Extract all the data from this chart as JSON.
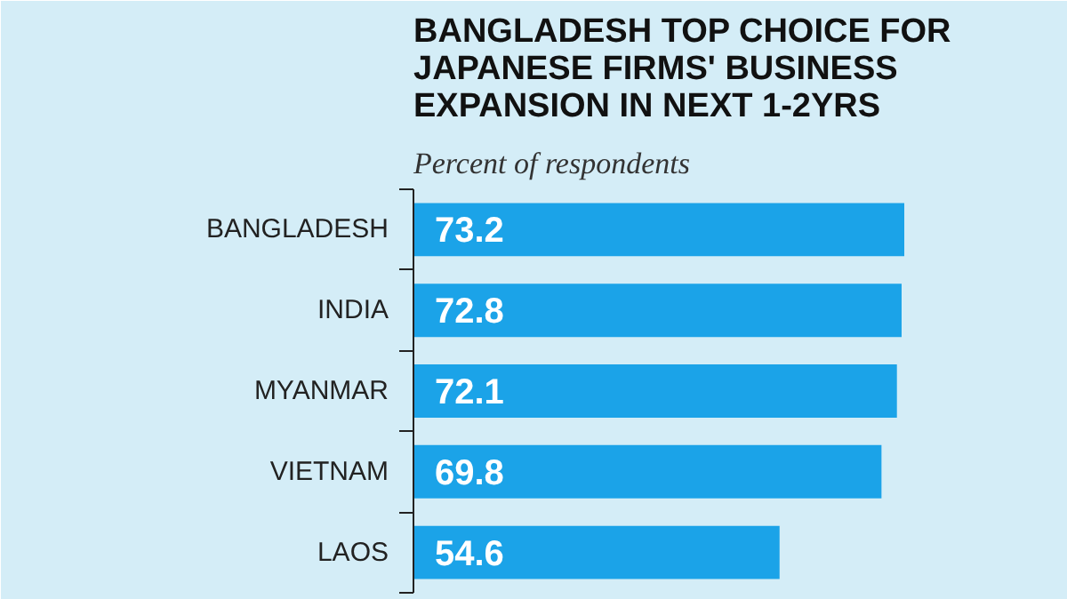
{
  "chart_data": {
    "type": "bar",
    "orientation": "horizontal",
    "title": "BANGLADESH TOP CHOICE FOR\nJAPANESE FIRMS' BUSINESS\nEXPANSION IN NEXT 1-2YRS",
    "subtitle": "Percent of respondents",
    "categories": [
      "BANGLADESH",
      "INDIA",
      "MYANMAR",
      "VIETNAM",
      "LAOS"
    ],
    "values": [
      73.2,
      72.8,
      72.1,
      69.8,
      54.6
    ],
    "color": "#1ba3e8",
    "data_labels": true,
    "grid": false
  }
}
